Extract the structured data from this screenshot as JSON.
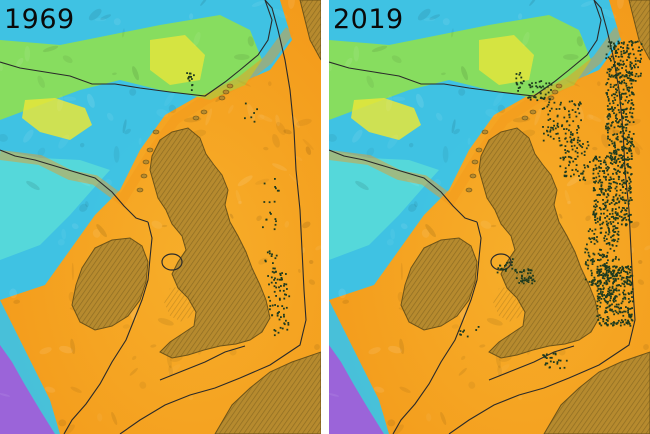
{
  "panels": [
    {
      "id": "left",
      "year_label": "1969",
      "well_density": "sparse"
    },
    {
      "id": "right",
      "year_label": "2019",
      "well_density": "dense"
    }
  ],
  "colors": {
    "shelf": "#f39a1a",
    "shelf_light": "#f7ae2a",
    "deep_blue": "#35c4ee",
    "mid_cyan": "#59dcd8",
    "green": "#8fe050",
    "yellow": "#e8e63a",
    "violet": "#a45ad8",
    "land": "#b68a2e",
    "land_shadow": "#6d5318",
    "boundary": "#2a2a2a",
    "wells": "#1d3a1f"
  }
}
